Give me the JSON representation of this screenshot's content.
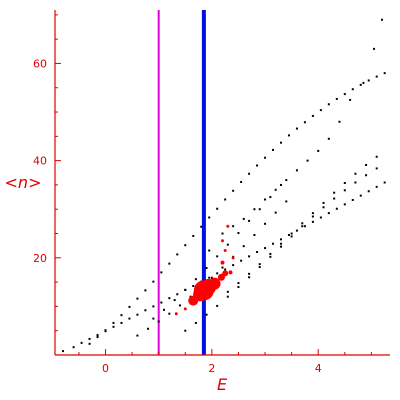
{
  "chart_data": {
    "type": "scatter",
    "title": "",
    "xlabel": "E",
    "ylabel": "<n>",
    "xlim": [
      -0.95,
      5.35
    ],
    "ylim": [
      0,
      71
    ],
    "xticks": [
      0,
      2,
      4
    ],
    "yticks": [
      20,
      40,
      60
    ],
    "grid": false,
    "colors": {
      "axis": "#e00000",
      "black_points": "#000000",
      "red_points": "#ff0000",
      "line_magenta": "#e000e0",
      "line_blue": "#0010e0"
    },
    "vertical_lines": [
      {
        "x": 1.0,
        "color": "#e000e0"
      },
      {
        "x": 1.85,
        "color": "#0010e0"
      }
    ],
    "black_series": {
      "x": [
        -0.8,
        -0.6,
        -0.45,
        -0.3,
        -0.15,
        0.0,
        0.15,
        0.3,
        0.45,
        0.6,
        0.75,
        0.9,
        1.05,
        1.2,
        1.35,
        1.5,
        1.65,
        1.8,
        1.95,
        2.1,
        2.25,
        2.4,
        2.55,
        2.7,
        2.85,
        3.0,
        3.15,
        3.3,
        3.45,
        3.6,
        3.75,
        3.9,
        4.05,
        4.2,
        4.35,
        4.5,
        4.65,
        4.8,
        4.95,
        5.1,
        5.25,
        -0.3,
        -0.15,
        0.0,
        0.15,
        0.3,
        0.45,
        0.6,
        0.75,
        0.9,
        1.05,
        1.2,
        1.35,
        1.5,
        1.65,
        1.8,
        1.95,
        2.1,
        2.25,
        2.4,
        2.55,
        2.7,
        2.85,
        3.0,
        3.15,
        3.3,
        3.45,
        3.6,
        3.75,
        3.9,
        4.05,
        4.2,
        4.35,
        4.5,
        4.65,
        4.8,
        4.95,
        5.1,
        5.25,
        1.5,
        1.7,
        1.9,
        2.1,
        2.3,
        2.5,
        2.7,
        2.9,
        3.1,
        3.3,
        3.5,
        3.7,
        3.9,
        4.1,
        4.3,
        4.5,
        4.7,
        4.9,
        5.1,
        0.6,
        0.8,
        1.0,
        1.2,
        1.4,
        1.6,
        1.8,
        2.0,
        2.2,
        2.4,
        2.6,
        2.8,
        3.0,
        3.2,
        3.4,
        2.3,
        2.5,
        2.7,
        2.9,
        3.1,
        3.3,
        3.5,
        3.7,
        3.9,
        4.1,
        4.3,
        4.5,
        4.7,
        4.9,
        5.1,
        0.9,
        1.1,
        1.3,
        1.5,
        1.7,
        1.9,
        2.1,
        2.3,
        2.5,
        2.7,
        2.9,
        3.1,
        3.3,
        5.2,
        5.05,
        4.85,
        4.6,
        4.4,
        4.2,
        4.0,
        3.8,
        3.6,
        3.4,
        3.2,
        3.0,
        2.8,
        2.6,
        2.4,
        2.2,
        1.95
      ],
      "y": [
        0.8,
        1.6,
        2.5,
        3.3,
        4.1,
        4.9,
        5.8,
        6.6,
        7.5,
        8.3,
        9.2,
        10.0,
        10.8,
        11.7,
        12.5,
        13.4,
        14.2,
        15.1,
        15.9,
        16.8,
        17.6,
        18.5,
        19.4,
        20.3,
        21.2,
        22.0,
        22.9,
        23.8,
        24.7,
        25.6,
        26.5,
        27.4,
        28.3,
        29.2,
        30.1,
        31.0,
        31.9,
        32.8,
        33.7,
        34.6,
        35.5,
        2.3,
        3.7,
        5.1,
        6.6,
        8.2,
        9.9,
        11.6,
        13.3,
        15.1,
        17.0,
        18.8,
        20.7,
        22.6,
        24.5,
        26.4,
        28.3,
        30.1,
        32.0,
        33.8,
        35.6,
        37.3,
        39.0,
        40.6,
        42.2,
        43.7,
        45.2,
        46.6,
        47.9,
        49.2,
        50.4,
        51.6,
        52.7,
        53.7,
        54.7,
        55.6,
        56.5,
        57.3,
        58.0,
        5.0,
        6.6,
        8.3,
        10.1,
        12.0,
        14.0,
        16.0,
        18.1,
        20.2,
        22.3,
        24.4,
        26.5,
        28.5,
        30.4,
        32.2,
        33.9,
        35.5,
        37.0,
        38.4,
        4.0,
        5.4,
        6.9,
        8.5,
        10.2,
        12.0,
        13.9,
        15.9,
        18.0,
        20.2,
        22.4,
        24.7,
        27.0,
        29.3,
        31.6,
        13.0,
        14.8,
        16.7,
        18.7,
        20.8,
        22.9,
        25.0,
        27.1,
        29.2,
        31.3,
        33.4,
        35.4,
        37.3,
        39.1,
        40.8,
        7.5,
        9.3,
        11.3,
        13.4,
        15.6,
        17.9,
        20.3,
        22.7,
        25.1,
        27.6,
        30.0,
        32.5,
        35.0,
        69.0,
        63.0,
        56.0,
        52.5,
        48.0,
        44.5,
        42.0,
        40.0,
        38.0,
        36.0,
        34.0,
        32.0,
        30.0,
        28.0,
        26.5,
        25.0,
        21.5
      ]
    },
    "red_series": {
      "x": [
        1.33,
        1.5,
        1.65,
        1.78,
        1.85,
        1.93,
        2.05,
        2.18,
        2.25,
        2.35,
        2.2,
        2.4,
        2.25,
        2.2,
        2.3
      ],
      "y": [
        8.5,
        9.5,
        11.2,
        12.5,
        13.3,
        14.0,
        14.7,
        16.0,
        16.8,
        17.0,
        19.0,
        20.0,
        21.5,
        23.5,
        26.5
      ],
      "sizes": [
        1.5,
        1.5,
        5,
        7,
        10,
        8,
        6,
        3.5,
        3,
        2,
        2,
        1.5,
        1.5,
        1.5,
        1.5
      ]
    }
  }
}
